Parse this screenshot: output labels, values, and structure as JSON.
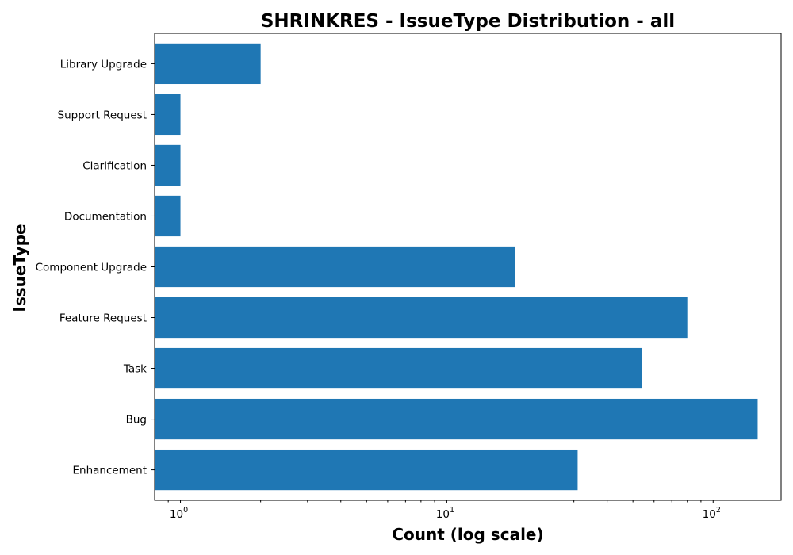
{
  "chart_data": {
    "type": "bar",
    "orientation": "horizontal",
    "title": "SHRINKRES - IssueType Distribution - all",
    "xlabel": "Count (log scale)",
    "ylabel": "IssueType",
    "x_scale": "log",
    "xlim": [
      0.8,
      180
    ],
    "categories": [
      "Enhancement",
      "Bug",
      "Task",
      "Feature Request",
      "Component Upgrade",
      "Documentation",
      "Clarification",
      "Support Request",
      "Library Upgrade"
    ],
    "values": [
      31,
      147,
      54,
      80,
      18,
      1,
      1,
      1,
      2
    ],
    "x_ticks": [
      {
        "value": 1,
        "base": "10",
        "exp": "0"
      },
      {
        "value": 10,
        "base": "10",
        "exp": "1"
      },
      {
        "value": 100,
        "base": "10",
        "exp": "2"
      }
    ],
    "bar_color": "#1f77b4",
    "grid": false
  }
}
